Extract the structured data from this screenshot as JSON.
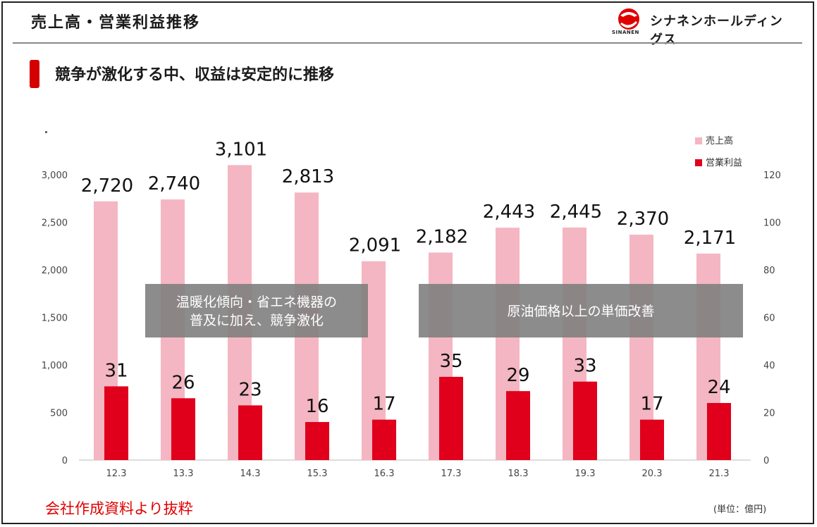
{
  "header": {
    "title": "売上高・営業利益推移",
    "logo_text": "シナネンホールディングス",
    "logo_sub": "SINANEN"
  },
  "subtitle": "競争が激化する中、収益は安定的に推移",
  "source_note": "会社作成資料より抜粋",
  "unit_note": "(単位：億円)",
  "colors": {
    "sales": "#f4b6c2",
    "profit": "#e0001b",
    "accent": "#d40000",
    "annotation_bg": "#7f7f7f"
  },
  "chart_data": {
    "type": "bar",
    "categories": [
      "12.3",
      "13.3",
      "14.3",
      "15.3",
      "16.3",
      "17.3",
      "18.3",
      "19.3",
      "20.3",
      "21.3"
    ],
    "series": [
      {
        "name": "売上高",
        "axis": "left",
        "values": [
          2720,
          2740,
          3101,
          2813,
          2091,
          2182,
          2443,
          2445,
          2370,
          2171
        ],
        "labels": [
          "2,720",
          "2,740",
          "3,101",
          "2,813",
          "2,091",
          "2,182",
          "2,443",
          "2,445",
          "2,370",
          "2,171"
        ]
      },
      {
        "name": "営業利益",
        "axis": "right",
        "values": [
          31,
          26,
          23,
          16,
          17,
          35,
          29,
          33,
          17,
          24
        ],
        "labels": [
          "31",
          "26",
          "23",
          "16",
          "17",
          "35",
          "29",
          "33",
          "17",
          "24"
        ]
      }
    ],
    "ylim_left": [
      0,
      3000
    ],
    "yticks_left": [
      "0",
      "500",
      "1,000",
      "1,500",
      "2,000",
      "2,500",
      "3,000"
    ],
    "ylim_right": [
      0,
      120
    ],
    "yticks_right": [
      "0",
      "20",
      "40",
      "60",
      "80",
      "100",
      "120"
    ],
    "legend_position": "top-right",
    "grid": false,
    "annotations": [
      {
        "text_lines": [
          "温暖化傾向・省エネ機器の",
          "普及に加え、競争激化"
        ]
      },
      {
        "text_lines": [
          "原油価格以上の単価改善"
        ]
      }
    ]
  }
}
